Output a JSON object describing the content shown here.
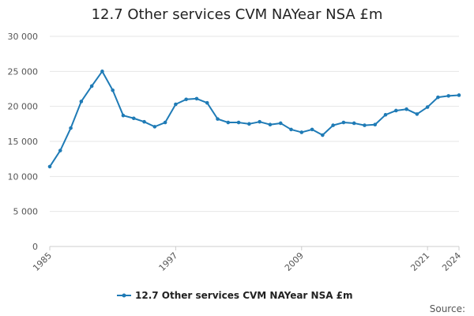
{
  "title": "12.7 Other services CVM NAYear NSA £m",
  "source_label": "Source:",
  "colors": {
    "series": "#1f7bb6",
    "grid": "#e6e6e6",
    "axis": "#cccccc"
  },
  "chart_data": {
    "type": "line",
    "title": "12.7 Other services CVM NAYear NSA £m",
    "xlabel": "",
    "ylabel": "",
    "xlim": [
      1985,
      2024
    ],
    "ylim": [
      0,
      30000
    ],
    "grid": true,
    "legend_position": "bottom",
    "x_ticks": [
      1985,
      1997,
      2009,
      2021,
      2024
    ],
    "y_ticks": [
      {
        "value": 0,
        "label": "0"
      },
      {
        "value": 5000,
        "label": "5 000"
      },
      {
        "value": 10000,
        "label": "10 000"
      },
      {
        "value": 15000,
        "label": "15 000"
      },
      {
        "value": 20000,
        "label": "20 000"
      },
      {
        "value": 25000,
        "label": "25 000"
      },
      {
        "value": 30000,
        "label": "30 000"
      }
    ],
    "x": [
      1985,
      1986,
      1987,
      1988,
      1989,
      1990,
      1991,
      1992,
      1993,
      1994,
      1995,
      1996,
      1997,
      1998,
      1999,
      2000,
      2001,
      2002,
      2003,
      2004,
      2005,
      2006,
      2007,
      2008,
      2009,
      2010,
      2011,
      2012,
      2013,
      2014,
      2015,
      2016,
      2017,
      2018,
      2019,
      2020,
      2021,
      2022,
      2023,
      2024
    ],
    "series": [
      {
        "name": "12.7 Other services CVM NAYear NSA £m",
        "values": [
          11400,
          13700,
          16900,
          20700,
          22900,
          25000,
          22300,
          18700,
          18300,
          17800,
          17100,
          17700,
          20300,
          21000,
          21100,
          20500,
          18200,
          17700,
          17700,
          17500,
          17800,
          17400,
          17600,
          16700,
          16300,
          16700,
          15900,
          17300,
          17700,
          17600,
          17300,
          17400,
          18800,
          19400,
          19600,
          18900,
          19900,
          21300,
          21500,
          21600
        ]
      }
    ]
  }
}
